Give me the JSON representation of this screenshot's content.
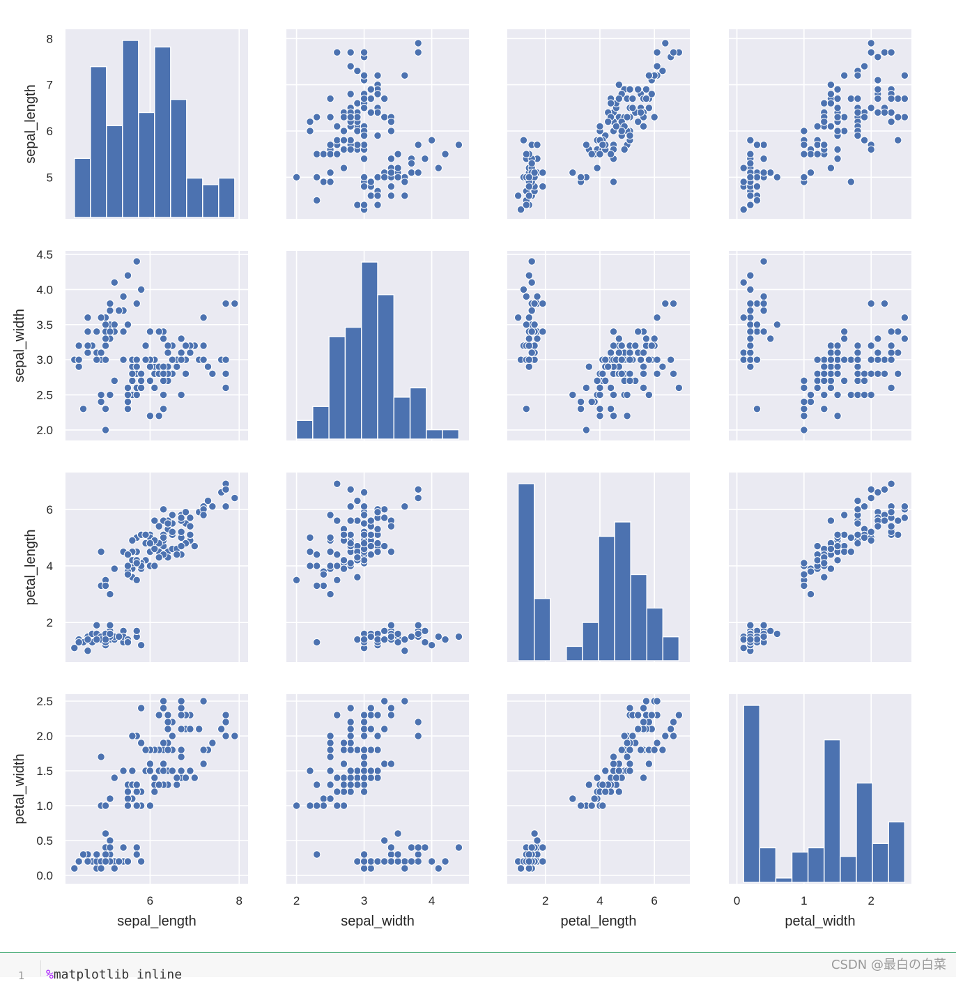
{
  "chart_data": {
    "type": "scatter",
    "title": "",
    "variables": [
      "sepal_length",
      "sepal_width",
      "petal_length",
      "petal_width"
    ],
    "axes": {
      "sepal_length": {
        "label": "sepal_length",
        "lim": [
          4.1,
          8.2
        ],
        "ticks": [
          6,
          8
        ],
        "tick_labels": [
          "6",
          "8"
        ],
        "y_ticks": [
          5,
          6,
          7,
          8
        ],
        "y_tick_labels": [
          "5",
          "6",
          "7",
          "8"
        ]
      },
      "sepal_width": {
        "label": "sepal_width",
        "lim": [
          1.85,
          4.55
        ],
        "ticks": [
          2,
          3,
          4
        ],
        "tick_labels": [
          "2",
          "3",
          "4"
        ],
        "y_ticks": [
          2.0,
          2.5,
          3.0,
          3.5,
          4.0,
          4.5
        ],
        "y_tick_labels": [
          "2.0",
          "2.5",
          "3.0",
          "3.5",
          "4.0",
          "4.5"
        ]
      },
      "petal_length": {
        "label": "petal_length",
        "lim": [
          0.6,
          7.3
        ],
        "ticks": [
          2,
          4,
          6
        ],
        "tick_labels": [
          "2",
          "4",
          "6"
        ],
        "y_ticks": [
          2,
          4,
          6
        ],
        "y_tick_labels": [
          "2",
          "4",
          "6"
        ]
      },
      "petal_width": {
        "label": "petal_width",
        "lim": [
          -0.12,
          2.6
        ],
        "ticks": [
          0,
          1,
          2
        ],
        "tick_labels": [
          "0",
          "1",
          "2"
        ],
        "y_ticks": [
          0.0,
          0.5,
          1.0,
          1.5,
          2.0,
          2.5
        ],
        "y_tick_labels": [
          "0.0",
          "0.5",
          "1.0",
          "1.5",
          "2.0",
          "2.5"
        ]
      }
    },
    "histograms": {
      "sepal_length": {
        "edges": [
          4.3,
          4.66,
          5.02,
          5.38,
          5.74,
          6.1,
          6.46,
          6.82,
          7.18,
          7.54,
          7.9
        ],
        "counts": [
          9,
          23,
          14,
          27,
          16,
          26,
          18,
          6,
          5,
          6
        ]
      },
      "sepal_width": {
        "edges": [
          2.0,
          2.24,
          2.48,
          2.72,
          2.96,
          3.2,
          3.44,
          3.68,
          3.92,
          4.16,
          4.4
        ],
        "counts": [
          4,
          7,
          22,
          24,
          38,
          31,
          9,
          11,
          2,
          2
        ]
      },
      "petal_length": {
        "edges": [
          1.0,
          1.59,
          2.18,
          2.77,
          3.36,
          3.95,
          4.54,
          5.13,
          5.72,
          6.31,
          6.9
        ],
        "counts": [
          37,
          13,
          0,
          3,
          8,
          26,
          29,
          18,
          11,
          5
        ]
      },
      "petal_width": {
        "edges": [
          0.1,
          0.34,
          0.58,
          0.82,
          1.06,
          1.3,
          1.54,
          1.78,
          2.02,
          2.26,
          2.5
        ],
        "counts": [
          41,
          8,
          1,
          7,
          8,
          33,
          6,
          23,
          9,
          14
        ]
      }
    },
    "observations": [
      [
        5.1,
        3.5,
        1.4,
        0.2
      ],
      [
        4.9,
        3.0,
        1.4,
        0.2
      ],
      [
        4.7,
        3.2,
        1.3,
        0.2
      ],
      [
        4.6,
        3.1,
        1.5,
        0.2
      ],
      [
        5.0,
        3.6,
        1.4,
        0.2
      ],
      [
        5.4,
        3.9,
        1.7,
        0.4
      ],
      [
        4.6,
        3.4,
        1.4,
        0.3
      ],
      [
        5.0,
        3.4,
        1.5,
        0.2
      ],
      [
        4.4,
        2.9,
        1.4,
        0.2
      ],
      [
        4.9,
        3.1,
        1.5,
        0.1
      ],
      [
        5.4,
        3.7,
        1.5,
        0.2
      ],
      [
        4.8,
        3.4,
        1.6,
        0.2
      ],
      [
        4.8,
        3.0,
        1.4,
        0.1
      ],
      [
        4.3,
        3.0,
        1.1,
        0.1
      ],
      [
        5.8,
        4.0,
        1.2,
        0.2
      ],
      [
        5.7,
        4.4,
        1.5,
        0.4
      ],
      [
        5.4,
        3.9,
        1.3,
        0.4
      ],
      [
        5.1,
        3.5,
        1.4,
        0.3
      ],
      [
        5.7,
        3.8,
        1.7,
        0.3
      ],
      [
        5.1,
        3.8,
        1.5,
        0.3
      ],
      [
        5.4,
        3.4,
        1.7,
        0.2
      ],
      [
        5.1,
        3.7,
        1.5,
        0.4
      ],
      [
        4.6,
        3.6,
        1.0,
        0.2
      ],
      [
        5.1,
        3.3,
        1.7,
        0.5
      ],
      [
        4.8,
        3.4,
        1.9,
        0.2
      ],
      [
        5.0,
        3.0,
        1.6,
        0.2
      ],
      [
        5.0,
        3.4,
        1.6,
        0.4
      ],
      [
        5.2,
        3.5,
        1.5,
        0.2
      ],
      [
        5.2,
        3.4,
        1.4,
        0.2
      ],
      [
        4.7,
        3.2,
        1.6,
        0.2
      ],
      [
        4.8,
        3.1,
        1.6,
        0.2
      ],
      [
        5.4,
        3.4,
        1.5,
        0.4
      ],
      [
        5.2,
        4.1,
        1.5,
        0.1
      ],
      [
        5.5,
        4.2,
        1.4,
        0.2
      ],
      [
        4.9,
        3.1,
        1.5,
        0.2
      ],
      [
        5.0,
        3.2,
        1.2,
        0.2
      ],
      [
        5.5,
        3.5,
        1.3,
        0.2
      ],
      [
        4.9,
        3.6,
        1.4,
        0.1
      ],
      [
        4.4,
        3.0,
        1.3,
        0.2
      ],
      [
        5.1,
        3.4,
        1.5,
        0.2
      ],
      [
        5.0,
        3.5,
        1.3,
        0.3
      ],
      [
        4.5,
        2.3,
        1.3,
        0.3
      ],
      [
        4.4,
        3.2,
        1.3,
        0.2
      ],
      [
        5.0,
        3.5,
        1.6,
        0.6
      ],
      [
        5.1,
        3.8,
        1.9,
        0.4
      ],
      [
        4.8,
        3.0,
        1.4,
        0.3
      ],
      [
        5.1,
        3.8,
        1.6,
        0.2
      ],
      [
        4.6,
        3.2,
        1.4,
        0.2
      ],
      [
        5.3,
        3.7,
        1.5,
        0.2
      ],
      [
        5.0,
        3.3,
        1.4,
        0.2
      ],
      [
        7.0,
        3.2,
        4.7,
        1.4
      ],
      [
        6.4,
        3.2,
        4.5,
        1.5
      ],
      [
        6.9,
        3.1,
        4.9,
        1.5
      ],
      [
        5.5,
        2.3,
        4.0,
        1.3
      ],
      [
        6.5,
        2.8,
        4.6,
        1.5
      ],
      [
        5.7,
        2.8,
        4.5,
        1.3
      ],
      [
        6.3,
        3.3,
        4.7,
        1.6
      ],
      [
        4.9,
        2.4,
        3.3,
        1.0
      ],
      [
        6.6,
        2.9,
        4.6,
        1.3
      ],
      [
        5.2,
        2.7,
        3.9,
        1.4
      ],
      [
        5.0,
        2.0,
        3.5,
        1.0
      ],
      [
        5.9,
        3.0,
        4.2,
        1.5
      ],
      [
        6.0,
        2.2,
        4.0,
        1.0
      ],
      [
        6.1,
        2.9,
        4.7,
        1.4
      ],
      [
        5.6,
        2.9,
        3.6,
        1.3
      ],
      [
        6.7,
        3.1,
        4.4,
        1.4
      ],
      [
        5.6,
        3.0,
        4.5,
        1.5
      ],
      [
        5.8,
        2.7,
        4.1,
        1.0
      ],
      [
        6.2,
        2.2,
        4.5,
        1.5
      ],
      [
        5.6,
        2.5,
        3.9,
        1.1
      ],
      [
        5.9,
        3.2,
        4.8,
        1.8
      ],
      [
        6.1,
        2.8,
        4.0,
        1.3
      ],
      [
        6.3,
        2.5,
        4.9,
        1.5
      ],
      [
        6.1,
        2.8,
        4.7,
        1.2
      ],
      [
        6.4,
        2.9,
        4.3,
        1.3
      ],
      [
        6.6,
        3.0,
        4.4,
        1.4
      ],
      [
        6.8,
        2.8,
        4.8,
        1.4
      ],
      [
        6.7,
        3.0,
        5.0,
        1.7
      ],
      [
        6.0,
        2.9,
        4.5,
        1.5
      ],
      [
        5.7,
        2.6,
        3.5,
        1.0
      ],
      [
        5.5,
        2.4,
        3.8,
        1.1
      ],
      [
        5.5,
        2.4,
        3.7,
        1.0
      ],
      [
        5.8,
        2.7,
        3.9,
        1.2
      ],
      [
        6.0,
        2.7,
        5.1,
        1.6
      ],
      [
        5.4,
        3.0,
        4.5,
        1.5
      ],
      [
        6.0,
        3.4,
        4.5,
        1.6
      ],
      [
        6.7,
        3.1,
        4.7,
        1.5
      ],
      [
        6.3,
        2.3,
        4.4,
        1.3
      ],
      [
        5.6,
        3.0,
        4.1,
        1.3
      ],
      [
        5.5,
        2.5,
        4.0,
        1.3
      ],
      [
        5.5,
        2.6,
        4.4,
        1.2
      ],
      [
        6.1,
        3.0,
        4.6,
        1.4
      ],
      [
        5.8,
        2.6,
        4.0,
        1.2
      ],
      [
        5.0,
        2.3,
        3.3,
        1.0
      ],
      [
        5.6,
        2.7,
        4.2,
        1.3
      ],
      [
        5.7,
        3.0,
        4.2,
        1.2
      ],
      [
        5.7,
        2.9,
        4.2,
        1.3
      ],
      [
        6.2,
        2.9,
        4.3,
        1.3
      ],
      [
        5.1,
        2.5,
        3.0,
        1.1
      ],
      [
        5.7,
        2.8,
        4.1,
        1.3
      ],
      [
        6.3,
        3.3,
        6.0,
        2.5
      ],
      [
        5.8,
        2.7,
        5.1,
        1.9
      ],
      [
        7.1,
        3.0,
        5.9,
        2.1
      ],
      [
        6.3,
        2.9,
        5.6,
        1.8
      ],
      [
        6.5,
        3.0,
        5.8,
        2.2
      ],
      [
        7.6,
        3.0,
        6.6,
        2.1
      ],
      [
        4.9,
        2.5,
        4.5,
        1.7
      ],
      [
        7.3,
        2.9,
        6.3,
        1.8
      ],
      [
        6.7,
        2.5,
        5.8,
        1.8
      ],
      [
        7.2,
        3.6,
        6.1,
        2.5
      ],
      [
        6.5,
        3.2,
        5.1,
        2.0
      ],
      [
        6.4,
        2.7,
        5.3,
        1.9
      ],
      [
        6.8,
        3.0,
        5.5,
        2.1
      ],
      [
        5.7,
        2.5,
        5.0,
        2.0
      ],
      [
        5.8,
        2.8,
        5.1,
        2.4
      ],
      [
        6.4,
        3.2,
        5.3,
        2.3
      ],
      [
        6.5,
        3.0,
        5.5,
        1.8
      ],
      [
        7.7,
        3.8,
        6.7,
        2.2
      ],
      [
        7.7,
        2.6,
        6.9,
        2.3
      ],
      [
        6.0,
        2.2,
        5.0,
        1.5
      ],
      [
        6.9,
        3.2,
        5.7,
        2.3
      ],
      [
        5.6,
        2.8,
        4.9,
        2.0
      ],
      [
        7.7,
        2.8,
        6.7,
        2.0
      ],
      [
        6.3,
        2.7,
        4.9,
        1.8
      ],
      [
        6.7,
        3.3,
        5.7,
        2.1
      ],
      [
        7.2,
        3.2,
        6.0,
        1.8
      ],
      [
        6.2,
        2.8,
        4.8,
        1.8
      ],
      [
        6.1,
        3.0,
        4.9,
        1.8
      ],
      [
        6.4,
        2.8,
        5.6,
        2.1
      ],
      [
        7.2,
        3.0,
        5.8,
        1.6
      ],
      [
        7.4,
        2.8,
        6.1,
        1.9
      ],
      [
        7.9,
        3.8,
        6.4,
        2.0
      ],
      [
        6.4,
        2.8,
        5.6,
        2.2
      ],
      [
        6.3,
        2.8,
        5.1,
        1.5
      ],
      [
        6.1,
        2.6,
        5.6,
        1.4
      ],
      [
        7.7,
        3.0,
        6.1,
        2.3
      ],
      [
        6.3,
        3.4,
        5.6,
        2.4
      ],
      [
        6.4,
        3.1,
        5.5,
        1.8
      ],
      [
        6.0,
        3.0,
        4.8,
        1.8
      ],
      [
        6.9,
        3.1,
        5.4,
        2.1
      ],
      [
        6.7,
        3.1,
        5.6,
        2.4
      ],
      [
        6.9,
        3.1,
        5.1,
        2.3
      ],
      [
        5.8,
        2.7,
        5.1,
        1.9
      ],
      [
        6.8,
        3.2,
        5.9,
        2.3
      ],
      [
        6.7,
        3.3,
        5.7,
        2.5
      ],
      [
        6.7,
        3.0,
        5.2,
        2.3
      ],
      [
        6.3,
        2.5,
        5.0,
        1.9
      ],
      [
        6.5,
        3.0,
        5.2,
        2.0
      ],
      [
        6.2,
        3.4,
        5.4,
        2.3
      ],
      [
        5.9,
        3.0,
        5.1,
        1.8
      ]
    ],
    "grid": true,
    "legend": "none",
    "colors": {
      "marker": "#4c72b0",
      "panel_background": "#eaeaf2",
      "grid": "#ffffff",
      "text": "#262626"
    }
  },
  "notebook": {
    "line_number": "1",
    "code_prefix": "%",
    "code_rest": "matplotlib inline"
  },
  "watermark": "CSDN @最白の白菜"
}
